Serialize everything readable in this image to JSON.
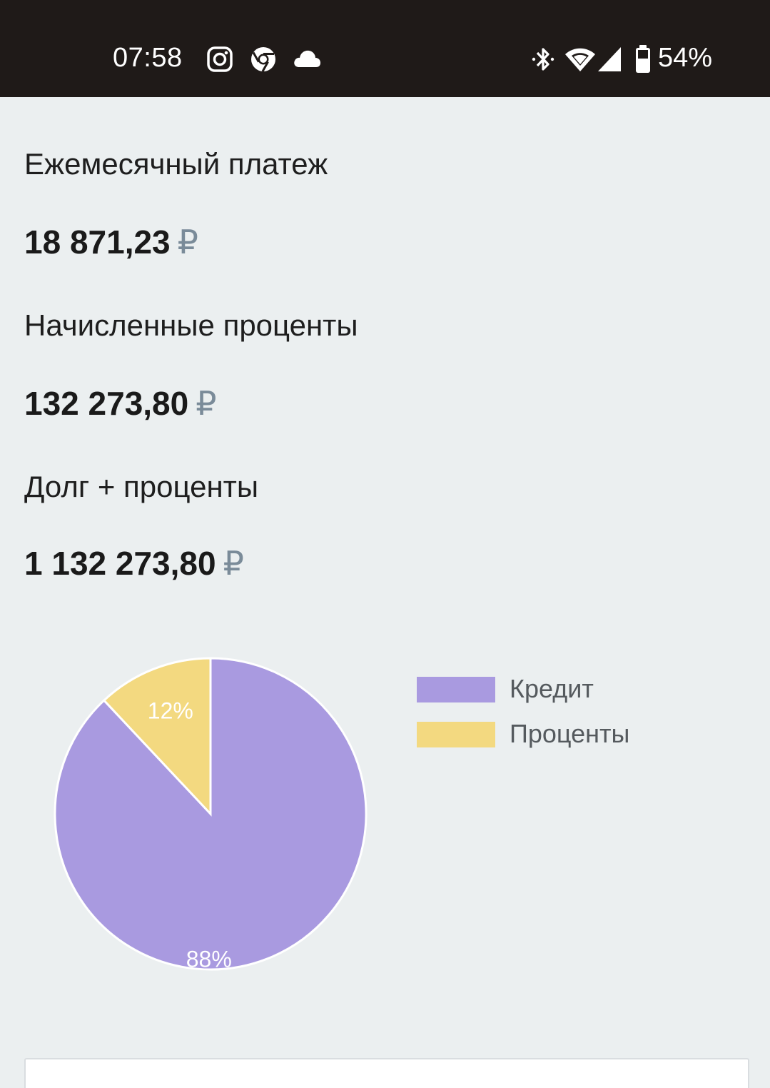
{
  "status_bar": {
    "time": "07:58",
    "notification_icons": [
      "instagram-icon",
      "chrome-icon",
      "cloud-icon"
    ],
    "system_icons": [
      "bluetooth-icon",
      "wifi-icon",
      "cellular-signal-icon",
      "battery-icon"
    ],
    "battery_percent": "54%"
  },
  "results": [
    {
      "label": "Ежемесячный платеж",
      "value": "18 871,23",
      "currency": "₽"
    },
    {
      "label": "Начисленные проценты",
      "value": "132 273,80",
      "currency": "₽"
    },
    {
      "label": "Долг + проценты",
      "value": "1 132 273,80",
      "currency": "₽"
    }
  ],
  "chart_data": {
    "type": "pie",
    "categories": [
      "Кредит",
      "Проценты"
    ],
    "values": [
      88,
      12
    ],
    "data_labels": [
      "88%",
      "12%"
    ],
    "colors": [
      "#a99ae0",
      "#f3d980"
    ],
    "legend_position": "right",
    "start_angle": "top, clockwise from Кредит"
  },
  "colors": {
    "background": "#ebeff0",
    "status_bar": "#1f1a18",
    "currency_symbol": "#7a8b99"
  }
}
